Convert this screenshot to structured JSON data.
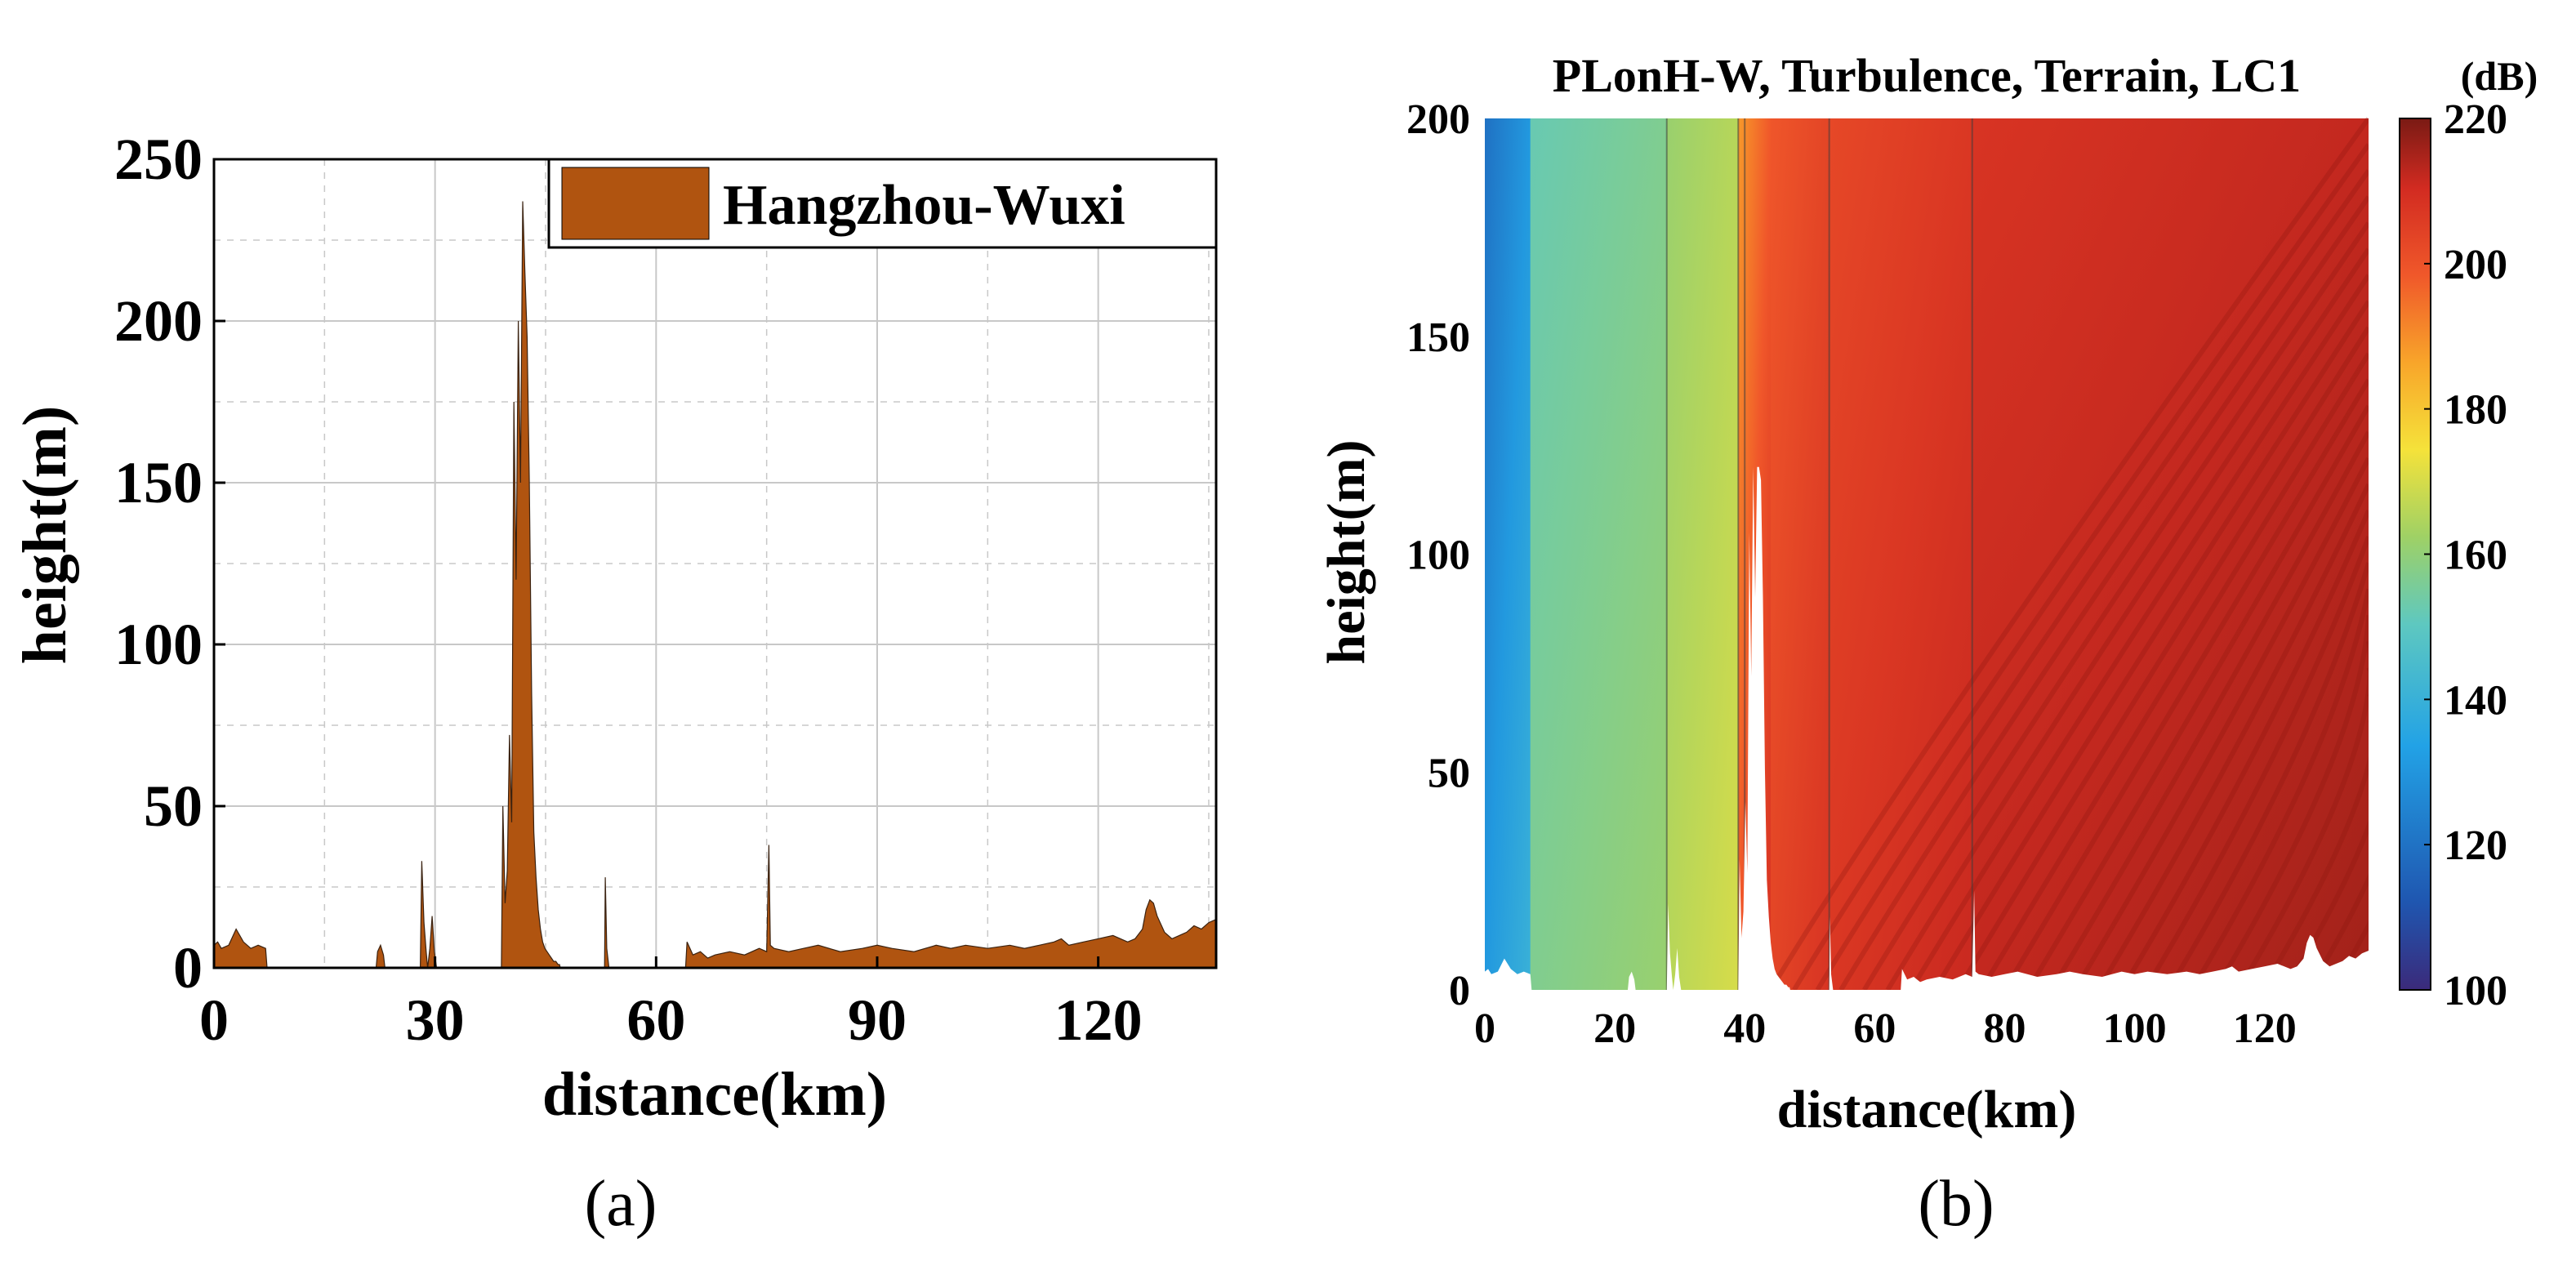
{
  "chart_data": [
    {
      "type": "area",
      "panel_caption": "(a)",
      "title": "",
      "xlabel": "distance(km)",
      "ylabel": "height(m)",
      "xlim": [
        0,
        136
      ],
      "ylim": [
        0,
        250
      ],
      "xticks": [
        0,
        30,
        60,
        90,
        120
      ],
      "yticks": [
        0,
        50,
        100,
        150,
        200,
        250
      ],
      "xtick_labels": [
        "0",
        "30",
        "60",
        "90",
        "120"
      ],
      "ytick_labels": [
        "0",
        "50",
        "100",
        "150",
        "200",
        "250"
      ],
      "grid": true,
      "legend": {
        "position": "top-right",
        "entries": [
          "Hangzhou-Wuxi"
        ]
      },
      "series": [
        {
          "name": "Hangzhou-Wuxi",
          "color": "#B05410",
          "x": [
            0,
            0.5,
            1,
            2,
            3,
            4,
            5,
            6,
            7,
            7.2,
            7.3,
            22,
            22.2,
            22.6,
            23,
            23.2,
            28,
            28.2,
            28.5,
            28.8,
            29,
            29.3,
            29.6,
            29.9,
            30.2,
            39,
            39.2,
            39.5,
            39.8,
            40.1,
            40.4,
            40.7,
            41,
            41.3,
            41.6,
            41.9,
            42.2,
            42.5,
            42.8,
            43.1,
            43.4,
            43.7,
            44,
            44.3,
            44.6,
            44.9,
            45.2,
            45.5,
            45.8,
            46.1,
            46.4,
            46.7,
            46.9,
            47,
            53,
            53.1,
            53.3,
            53.5,
            53.6,
            64,
            64.2,
            65,
            66,
            67,
            68,
            70,
            72,
            74,
            75,
            75.3,
            75.5,
            76,
            78,
            80,
            82,
            85,
            88,
            90,
            92,
            95,
            98,
            100,
            102,
            105,
            108,
            110,
            112,
            114,
            115,
            116,
            118,
            120,
            122,
            124,
            125,
            126,
            126.5,
            127,
            127.5,
            128,
            129,
            130,
            131,
            132,
            133,
            134,
            135,
            136
          ],
          "y": [
            7,
            8,
            6,
            7,
            12,
            8,
            6,
            7,
            6,
            0,
            0,
            0,
            5,
            7,
            4,
            0,
            0,
            33,
            14,
            5,
            0,
            6,
            16,
            5,
            0,
            0,
            50,
            20,
            30,
            72,
            45,
            175,
            120,
            200,
            150,
            237,
            215,
            195,
            150,
            85,
            42,
            28,
            18,
            12,
            8,
            6,
            5,
            4,
            3,
            2,
            2,
            1,
            1,
            0,
            0,
            28,
            6,
            2,
            0,
            0,
            8,
            4,
            5,
            3,
            4,
            5,
            4,
            6,
            5,
            38,
            7,
            6,
            5,
            6,
            7,
            5,
            6,
            7,
            6,
            5,
            7,
            6,
            7,
            6,
            7,
            6,
            7,
            8,
            9,
            7,
            8,
            9,
            10,
            8,
            9,
            12,
            18,
            21,
            20,
            16,
            11,
            9,
            10,
            11,
            13,
            12,
            14,
            15
          ]
        }
      ]
    },
    {
      "type": "heatmap",
      "panel_caption": "(b)",
      "title": "PLonH-W, Turbulence, Terrain, LC1",
      "colorbar_unit": "(dB)",
      "xlabel": "distance(km)",
      "ylabel": "height(m)",
      "xlim": [
        0,
        136
      ],
      "ylim": [
        0,
        200
      ],
      "xticks": [
        0,
        20,
        40,
        60,
        80,
        100,
        120
      ],
      "yticks": [
        0,
        50,
        100,
        150,
        200
      ],
      "xtick_labels": [
        "0",
        "20",
        "40",
        "60",
        "80",
        "100",
        "120"
      ],
      "ytick_labels": [
        "0",
        "50",
        "100",
        "150",
        "200"
      ],
      "color_range": [
        100,
        220
      ],
      "colorbar_ticks": [
        100,
        120,
        140,
        160,
        180,
        200,
        220
      ],
      "colorbar_tick_labels": [
        "100",
        "120",
        "140",
        "160",
        "180",
        "200",
        "220"
      ],
      "regions": [
        {
          "x_start": 0,
          "x_end": 7,
          "value_low": 118,
          "value_high": 132
        },
        {
          "x_start": 7,
          "x_end": 28,
          "value_low": 142,
          "value_high": 152
        },
        {
          "x_start": 28,
          "x_end": 39,
          "value_low": 152,
          "value_high": 162
        },
        {
          "x_start": 39,
          "x_end": 44,
          "value_low": 182,
          "value_high": 205
        },
        {
          "x_start": 44,
          "x_end": 53,
          "value_low": 194,
          "value_high": 204
        },
        {
          "x_start": 53,
          "x_end": 75,
          "value_low": 198,
          "value_high": 208
        },
        {
          "x_start": 75,
          "x_end": 136,
          "value_low": 204,
          "value_high": 214
        }
      ]
    }
  ],
  "colors": {
    "terrain_fill": "#B05410",
    "grid": "#c8c8c8",
    "colormap": [
      "#3b2a7a",
      "#1f56b0",
      "#22a2e6",
      "#5ec8c0",
      "#9fd165",
      "#f5e23a",
      "#f8a52a",
      "#f0582a",
      "#d22b21",
      "#7a1a14"
    ]
  }
}
